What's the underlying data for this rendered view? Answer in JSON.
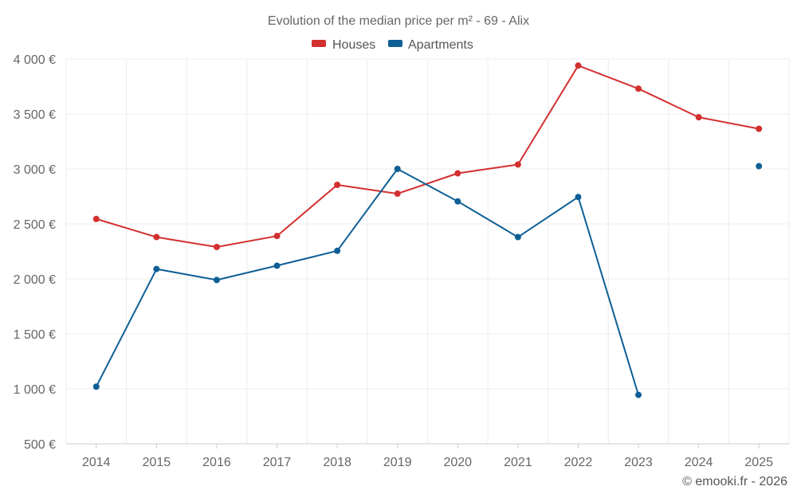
{
  "chart_data": {
    "type": "line",
    "title": "Evolution of the median price per m² - 69 - Alix",
    "categories": [
      "2014",
      "2015",
      "2016",
      "2017",
      "2018",
      "2019",
      "2020",
      "2021",
      "2022",
      "2023",
      "2024",
      "2025"
    ],
    "series": [
      {
        "name": "Houses",
        "color": "#d32f2f",
        "values": [
          2545,
          2380,
          2290,
          2390,
          2855,
          2775,
          2960,
          3040,
          3940,
          3730,
          3470,
          3365
        ]
      },
      {
        "name": "Apartments",
        "color": "#0e5f95",
        "values": [
          1020,
          2090,
          1990,
          2120,
          2255,
          3000,
          2705,
          2380,
          2745,
          945,
          null,
          3025
        ]
      }
    ],
    "ylim": [
      500,
      4000
    ],
    "yticks": [
      500,
      1000,
      1500,
      2000,
      2500,
      3000,
      3500,
      4000
    ],
    "ytick_labels": [
      "500 €",
      "1 000 €",
      "1 500 €",
      "2 000 €",
      "2 500 €",
      "3 000 €",
      "3 500 €",
      "4 000 €"
    ],
    "xlabel": "",
    "ylabel": "",
    "grid": true,
    "legend_position": "top-center"
  },
  "credit": "© emooki.fr - 2026"
}
